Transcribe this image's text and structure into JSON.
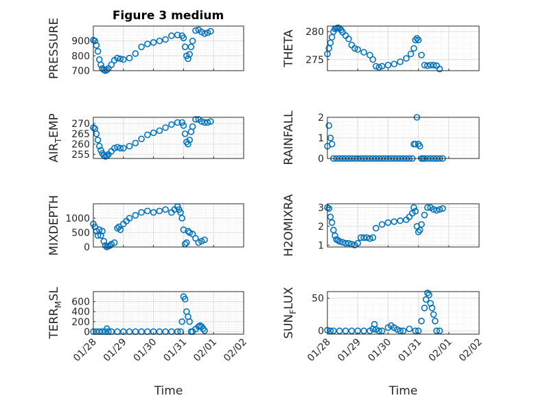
{
  "figure": {
    "title": "Figure 3 medium"
  },
  "chart_data": [
    {
      "type": "scatter",
      "ylabel": "PRESSURE",
      "ylim": [
        700,
        1000
      ],
      "yticks": [
        700,
        800,
        900
      ],
      "ytick_labels": [
        "700",
        "800",
        "900"
      ],
      "xlim": [
        0,
        5
      ],
      "xticks": [
        0,
        1,
        2,
        3,
        4,
        5
      ],
      "xtick_labels": [
        "01/28",
        "01/29",
        "01/30",
        "01/31",
        "02/01",
        "02/02"
      ],
      "grid": true,
      "series": [
        {
          "color": "#0072BD",
          "x": [
            0,
            0.05,
            0.1,
            0.15,
            0.2,
            0.25,
            0.3,
            0.35,
            0.4,
            0.45,
            0.5,
            0.6,
            0.7,
            0.8,
            0.9,
            1.0,
            1.2,
            1.4,
            1.6,
            1.8,
            2.0,
            2.2,
            2.4,
            2.6,
            2.8,
            2.95,
            3.0,
            3.05,
            3.1,
            3.15,
            3.2,
            3.25,
            3.3,
            3.4,
            3.5,
            3.6,
            3.7,
            3.8,
            3.9
          ],
          "y": [
            905,
            900,
            870,
            830,
            775,
            740,
            715,
            705,
            700,
            705,
            715,
            740,
            770,
            785,
            780,
            775,
            785,
            815,
            860,
            880,
            890,
            900,
            910,
            935,
            940,
            935,
            920,
            860,
            800,
            780,
            810,
            860,
            900,
            970,
            975,
            960,
            950,
            955,
            965
          ]
        }
      ]
    },
    {
      "type": "scatter",
      "ylabel": "THETA",
      "ylim": [
        273,
        281
      ],
      "yticks": [
        275,
        280
      ],
      "ytick_labels": [
        "275",
        "280"
      ],
      "xlim": [
        0,
        5
      ],
      "xticks": [
        0,
        1,
        2,
        3,
        4,
        5
      ],
      "xtick_labels": [
        "01/28",
        "01/29",
        "01/30",
        "01/31",
        "02/01",
        "02/02"
      ],
      "grid": true,
      "series": [
        {
          "color": "#0072BD",
          "x": [
            0,
            0.05,
            0.1,
            0.15,
            0.2,
            0.25,
            0.3,
            0.35,
            0.4,
            0.45,
            0.5,
            0.6,
            0.7,
            0.8,
            0.9,
            1.0,
            1.2,
            1.4,
            1.5,
            1.6,
            1.7,
            1.8,
            2.0,
            2.2,
            2.4,
            2.6,
            2.75,
            2.85,
            2.9,
            2.95,
            3.0,
            3.1,
            3.2,
            3.3,
            3.4,
            3.5,
            3.6,
            3.7
          ],
          "y": [
            276,
            277,
            278,
            279,
            280,
            280.5,
            280.6,
            280.7,
            280.6,
            280.3,
            279.9,
            279.3,
            278.7,
            277.6,
            277,
            276.8,
            276.3,
            275.8,
            275,
            273.8,
            273.6,
            273.8,
            274,
            274.2,
            274.6,
            275.2,
            276,
            277,
            278.5,
            278.8,
            278.5,
            275.8,
            274,
            273.9,
            274,
            274,
            273.9,
            273.3
          ]
        }
      ]
    },
    {
      "type": "scatter",
      "ylabel": "AIR_TEMP",
      "ylim": [
        253,
        273
      ],
      "yticks": [
        255,
        260,
        265,
        270
      ],
      "ytick_labels": [
        "255",
        "260",
        "265",
        "270"
      ],
      "xlim": [
        0,
        5
      ],
      "xticks": [
        0,
        1,
        2,
        3,
        4,
        5
      ],
      "xtick_labels": [
        "01/28",
        "01/29",
        "01/30",
        "01/31",
        "02/01",
        "02/02"
      ],
      "grid": true,
      "series": [
        {
          "color": "#0072BD",
          "x": [
            0,
            0.05,
            0.1,
            0.15,
            0.2,
            0.25,
            0.3,
            0.35,
            0.4,
            0.45,
            0.5,
            0.6,
            0.7,
            0.8,
            0.9,
            1.0,
            1.2,
            1.4,
            1.6,
            1.8,
            2.0,
            2.2,
            2.4,
            2.6,
            2.8,
            2.95,
            3.0,
            3.05,
            3.1,
            3.15,
            3.2,
            3.25,
            3.3,
            3.4,
            3.5,
            3.6,
            3.7,
            3.8,
            3.9
          ],
          "y": [
            268,
            267.5,
            265,
            262,
            259,
            257,
            255.5,
            254.5,
            254,
            254.3,
            255,
            256.5,
            258,
            258.5,
            258,
            258,
            259,
            260.5,
            262.5,
            264.5,
            265.5,
            266.5,
            268,
            269.5,
            270.5,
            270.5,
            269,
            265,
            261,
            260,
            262,
            266,
            268.5,
            272,
            272,
            271,
            270.5,
            270.5,
            271
          ]
        }
      ]
    },
    {
      "type": "scatter",
      "ylabel": "RAINFALL",
      "ylim": [
        0,
        2
      ],
      "yticks": [
        0,
        1,
        2
      ],
      "ytick_labels": [
        "0",
        "1",
        "2"
      ],
      "xlim": [
        0,
        5
      ],
      "xticks": [
        0,
        1,
        2,
        3,
        4,
        5
      ],
      "xtick_labels": [
        "01/28",
        "01/29",
        "01/30",
        "01/31",
        "02/01",
        "02/02"
      ],
      "grid": true,
      "series": [
        {
          "color": "#0072BD",
          "x": [
            0,
            0.05,
            0.1,
            0.15,
            0.2,
            0.3,
            0.4,
            0.5,
            0.6,
            0.7,
            0.8,
            0.9,
            1.0,
            1.1,
            1.2,
            1.3,
            1.4,
            1.5,
            1.6,
            1.7,
            1.8,
            1.9,
            2.0,
            2.1,
            2.2,
            2.3,
            2.4,
            2.5,
            2.6,
            2.7,
            2.8,
            2.85,
            2.9,
            2.95,
            3.0,
            3.05,
            3.1,
            3.15,
            3.2,
            3.3,
            3.4,
            3.5,
            3.6,
            3.7,
            3.8
          ],
          "y": [
            0.6,
            1.6,
            1.0,
            0.7,
            0,
            0,
            0,
            0,
            0,
            0,
            0,
            0,
            0,
            0,
            0,
            0,
            0,
            0,
            0,
            0,
            0,
            0,
            0,
            0,
            0,
            0,
            0,
            0,
            0,
            0,
            0,
            0.7,
            0.7,
            2.0,
            0.7,
            0.6,
            0,
            0,
            0,
            0,
            0,
            0,
            0,
            0,
            0
          ]
        }
      ]
    },
    {
      "type": "scatter",
      "ylabel": "MIXDEPTH",
      "ylim": [
        0,
        1500
      ],
      "yticks": [
        0,
        500,
        1000
      ],
      "ytick_labels": [
        "0",
        "500",
        "1000"
      ],
      "xlim": [
        0,
        5
      ],
      "xticks": [
        0,
        1,
        2,
        3,
        4,
        5
      ],
      "xtick_labels": [
        "01/28",
        "01/29",
        "01/30",
        "01/31",
        "02/01",
        "02/02"
      ],
      "grid": true,
      "series": [
        {
          "color": "#0072BD",
          "x": [
            0,
            0.05,
            0.1,
            0.15,
            0.2,
            0.25,
            0.3,
            0.35,
            0.4,
            0.45,
            0.5,
            0.55,
            0.6,
            0.7,
            0.8,
            0.85,
            0.9,
            1.0,
            1.1,
            1.2,
            1.4,
            1.6,
            1.8,
            2.0,
            2.2,
            2.4,
            2.6,
            2.7,
            2.8,
            2.85,
            2.9,
            2.95,
            3.0,
            3.05,
            3.1,
            3.15,
            3.2,
            3.3,
            3.4,
            3.5,
            3.6,
            3.7
          ],
          "y": [
            800,
            700,
            550,
            400,
            600,
            400,
            550,
            200,
            50,
            0,
            30,
            50,
            100,
            150,
            650,
            700,
            600,
            800,
            900,
            1000,
            1100,
            1200,
            1250,
            1200,
            1250,
            1300,
            1200,
            1300,
            1400,
            1300,
            1200,
            1000,
            600,
            100,
            150,
            550,
            500,
            450,
            300,
            150,
            200,
            250
          ]
        }
      ]
    },
    {
      "type": "scatter",
      "ylabel": "H2OMIXRA",
      "ylim": [
        0.9,
        3.2
      ],
      "yticks": [
        1,
        2,
        3
      ],
      "ytick_labels": [
        "1",
        "2",
        "3"
      ],
      "xlim": [
        0,
        5
      ],
      "xticks": [
        0,
        1,
        2,
        3,
        4,
        5
      ],
      "xtick_labels": [
        "01/28",
        "01/29",
        "01/30",
        "01/31",
        "02/01",
        "02/02"
      ],
      "grid": true,
      "series": [
        {
          "color": "#0072BD",
          "x": [
            0,
            0.05,
            0.1,
            0.15,
            0.2,
            0.25,
            0.3,
            0.35,
            0.4,
            0.5,
            0.6,
            0.7,
            0.8,
            0.9,
            1.0,
            1.1,
            1.2,
            1.3,
            1.4,
            1.5,
            1.6,
            1.8,
            2.0,
            2.2,
            2.4,
            2.6,
            2.7,
            2.8,
            2.85,
            2.9,
            2.95,
            3.0,
            3.05,
            3.1,
            3.2,
            3.3,
            3.4,
            3.5,
            3.6,
            3.7,
            3.8
          ],
          "y": [
            3.0,
            2.95,
            2.5,
            2.2,
            1.8,
            1.5,
            1.3,
            1.25,
            1.2,
            1.15,
            1.1,
            1.1,
            1.05,
            1.0,
            1.1,
            1.4,
            1.4,
            1.4,
            1.35,
            1.4,
            1.9,
            2.1,
            2.2,
            2.25,
            2.3,
            2.35,
            2.5,
            2.7,
            3.0,
            2.8,
            2.0,
            1.7,
            1.8,
            2.1,
            2.6,
            3.0,
            3.0,
            2.9,
            2.85,
            2.9,
            2.95
          ]
        }
      ]
    },
    {
      "type": "scatter",
      "ylabel": "TERR_MSL",
      "ylim": [
        -50,
        800
      ],
      "yticks": [
        0,
        200,
        400,
        600
      ],
      "ytick_labels": [
        "0",
        "200",
        "400",
        "600"
      ],
      "xlim": [
        0,
        5
      ],
      "xticks": [
        0,
        1,
        2,
        3,
        4,
        5
      ],
      "xtick_labels": [
        "01/28",
        "01/29",
        "01/30",
        "01/31",
        "02/01",
        "02/02"
      ],
      "xlabel": "Time",
      "grid": true,
      "series": [
        {
          "color": "#0072BD",
          "x": [
            0,
            0.1,
            0.2,
            0.3,
            0.4,
            0.45,
            0.5,
            0.6,
            0.8,
            1.0,
            1.2,
            1.4,
            1.6,
            1.8,
            2.0,
            2.2,
            2.4,
            2.6,
            2.8,
            2.9,
            2.95,
            3.0,
            3.05,
            3.1,
            3.15,
            3.2,
            3.25,
            3.3,
            3.4,
            3.5,
            3.55,
            3.6,
            3.65,
            3.7
          ],
          "y": [
            0,
            0,
            0,
            0,
            0,
            60,
            0,
            0,
            0,
            0,
            0,
            0,
            0,
            0,
            0,
            0,
            0,
            0,
            0,
            0,
            200,
            700,
            650,
            400,
            300,
            200,
            0,
            0,
            50,
            100,
            120,
            100,
            60,
            20
          ]
        }
      ]
    },
    {
      "type": "scatter",
      "ylabel": "SUN_FLUX",
      "ylim": [
        -5,
        60
      ],
      "yticks": [
        0,
        50
      ],
      "ytick_labels": [
        "0",
        "50"
      ],
      "xlim": [
        0,
        5
      ],
      "xticks": [
        0,
        1,
        2,
        3,
        4,
        5
      ],
      "xtick_labels": [
        "01/28",
        "01/29",
        "01/30",
        "01/31",
        "02/01",
        "02/02"
      ],
      "xlabel": "Time",
      "grid": true,
      "series": [
        {
          "color": "#0072BD",
          "x": [
            0,
            0.1,
            0.2,
            0.4,
            0.6,
            0.8,
            1.0,
            1.2,
            1.4,
            1.5,
            1.55,
            1.6,
            1.7,
            1.8,
            2.0,
            2.1,
            2.2,
            2.3,
            2.4,
            2.5,
            2.7,
            2.9,
            3.0,
            3.1,
            3.2,
            3.25,
            3.3,
            3.35,
            3.4,
            3.45,
            3.5,
            3.55,
            3.6,
            3.7
          ],
          "y": [
            1,
            0,
            0,
            0,
            0,
            0,
            0,
            0,
            0,
            3,
            10,
            2,
            0,
            0,
            5,
            8,
            5,
            2,
            0,
            0,
            3,
            0,
            0,
            15,
            35,
            48,
            58,
            55,
            42,
            35,
            25,
            15,
            0,
            0
          ]
        }
      ]
    }
  ]
}
